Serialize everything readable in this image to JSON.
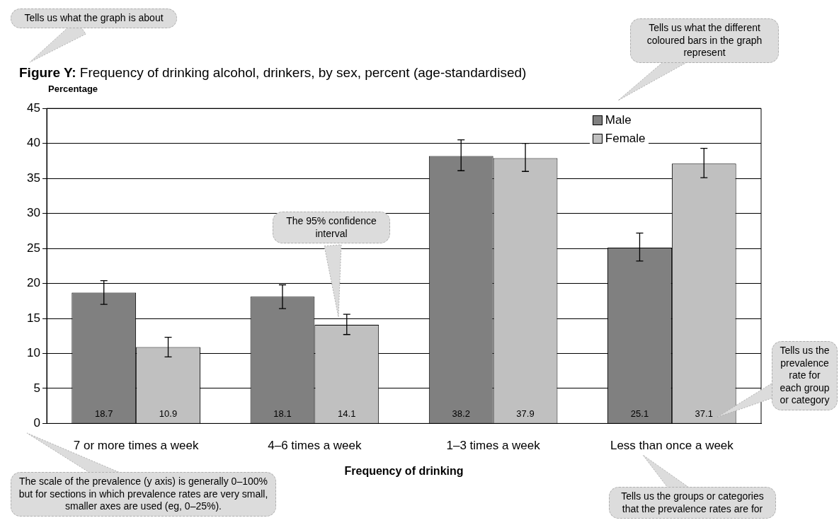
{
  "chart_data": {
    "type": "bar",
    "title": "Figure Y:  Frequency of drinking alcohol, drinkers, by sex, percent (age-standardised)",
    "ylabel": "Percentage",
    "xlabel": "Frequency of drinking",
    "categories": [
      "7 or more times a week",
      "4–6 times a week",
      "1–3 times a week",
      "Less than once a week"
    ],
    "series": [
      {
        "name": "Male",
        "color": "#808080",
        "values": [
          18.7,
          18.1,
          38.2,
          25.1
        ],
        "errors": [
          [
            17.0,
            20.4
          ],
          [
            16.4,
            19.8
          ],
          [
            36.1,
            40.5
          ],
          [
            23.2,
            27.2
          ]
        ]
      },
      {
        "name": "Female",
        "color": "#c0c0c0",
        "values": [
          10.9,
          14.1,
          37.9,
          37.1
        ],
        "errors": [
          [
            9.5,
            12.3
          ],
          [
            12.7,
            15.6
          ],
          [
            36.0,
            40.0
          ],
          [
            35.1,
            39.3
          ]
        ]
      }
    ],
    "ylim": [
      0,
      45
    ],
    "yticks": [
      0,
      5,
      10,
      15,
      20,
      25,
      30,
      35,
      40,
      45
    ],
    "grid": "y",
    "legend": "top right",
    "data_labels": true,
    "annotations": [
      "Tells us what the graph is about",
      "Tells us what the different coloured bars in the graph represent",
      "The 95% confidence interval",
      "Tells us the prevalence rate for each group or category",
      "The scale of the prevalence (y axis) is generally 0–100% but for sections in which prevalence rates are very small, smaller axes are used (eg, 0–25%).",
      "Tells us the groups or categories that the prevalence rates are for"
    ]
  }
}
